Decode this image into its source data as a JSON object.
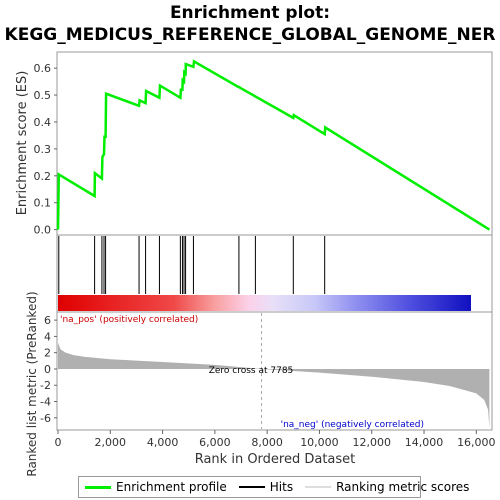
{
  "title_line1": "Enrichment plot:",
  "title_line2": "KEGG_MEDICUS_REFERENCE_GLOBAL_GENOME_NER",
  "colors": {
    "es_line": "#00ee00",
    "hits": "#000000",
    "metric_fill": "#b0b0b0",
    "pos_label": "#cc0000",
    "neg_label": "#0000cc",
    "zero_line": "#aaaaaa"
  },
  "chart_data": {
    "type": "line",
    "x_range": [
      0,
      16600
    ],
    "x_ticks": [
      0,
      2000,
      4000,
      6000,
      8000,
      10000,
      12000,
      14000,
      16000
    ],
    "x_tick_labels": [
      "0",
      "2,000",
      "4,000",
      "6,000",
      "8,000",
      "10,000",
      "12,000",
      "14,000",
      "16,000"
    ],
    "xlabel": "Rank in Ordered Dataset",
    "es_panel": {
      "ylabel": "Enrichment score (ES)",
      "ylim": [
        -0.02,
        0.66
      ],
      "y_ticks": [
        0.0,
        0.1,
        0.2,
        0.3,
        0.4,
        0.5,
        0.6
      ],
      "y_tick_labels": [
        "0.0",
        "0.1",
        "0.2",
        "0.3",
        "0.4",
        "0.5",
        "0.6"
      ],
      "series": [
        {
          "name": "Enrichment profile",
          "x": [
            0,
            30,
            1400,
            1410,
            1680,
            1700,
            1760,
            1780,
            1820,
            1840,
            3100,
            3120,
            3350,
            3370,
            3880,
            3900,
            4680,
            4700,
            4760,
            4770,
            4820,
            4830,
            4880,
            4890,
            5180,
            5200,
            6900,
            6920,
            7000,
            9000,
            9020,
            10200,
            10220,
            16500
          ],
          "y": [
            0.0,
            0.205,
            0.125,
            0.21,
            0.19,
            0.27,
            0.28,
            0.345,
            0.345,
            0.505,
            0.46,
            0.48,
            0.47,
            0.515,
            0.49,
            0.535,
            0.49,
            0.52,
            0.52,
            0.555,
            0.55,
            0.585,
            0.58,
            0.615,
            0.605,
            0.625,
            0.53,
            0.53,
            0.525,
            0.415,
            0.425,
            0.355,
            0.38,
            0.0
          ]
        }
      ]
    },
    "hits": [
      30,
      1400,
      1680,
      1760,
      1820,
      3100,
      3350,
      3880,
      4680,
      4760,
      4820,
      4880,
      5180,
      6920,
      7550,
      9000,
      10200
    ],
    "metric_panel": {
      "ylabel": "Ranked list metric (PreRanked)",
      "ylim": [
        -7.5,
        7
      ],
      "y_ticks": [
        -6,
        -4,
        -2,
        0,
        2,
        4,
        6
      ],
      "y_tick_labels": [
        "-6",
        "-4",
        "-2",
        "0",
        "2",
        "4",
        "6"
      ],
      "profile_x": [
        0,
        100,
        300,
        600,
        1000,
        2000,
        4000,
        6000,
        7785,
        10000,
        12000,
        14000,
        15000,
        16000,
        16300,
        16450,
        16500
      ],
      "profile_y": [
        3.2,
        2.4,
        2.0,
        1.7,
        1.5,
        1.2,
        0.85,
        0.5,
        0.0,
        -0.45,
        -0.95,
        -1.6,
        -2.1,
        -3.0,
        -3.8,
        -5.0,
        -7.3
      ]
    },
    "zero_cross_label": "Zero cross at 7785",
    "zero_cross_x": 7785,
    "pos_label": "'na_pos' (positively correlated)",
    "neg_label": "'na_neg' (negatively correlated)"
  },
  "legend": {
    "items": [
      {
        "label": "Enrichment profile"
      },
      {
        "label": "Hits"
      },
      {
        "label": "Ranking metric scores"
      }
    ]
  }
}
